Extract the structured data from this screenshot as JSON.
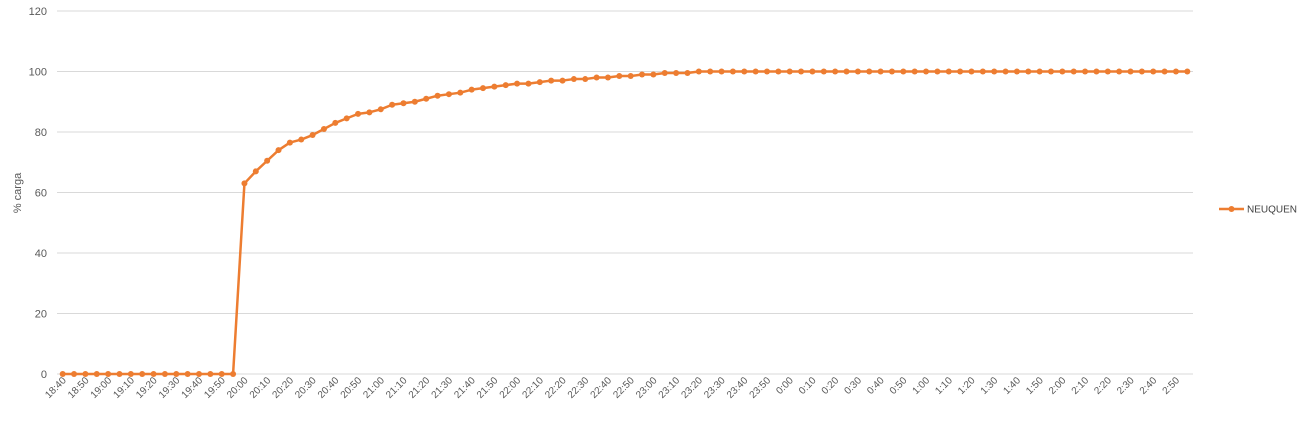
{
  "chart_data": {
    "type": "line",
    "title": "",
    "xlabel": "",
    "ylabel": "% carga",
    "ylim": [
      0,
      120
    ],
    "yticks": [
      0,
      20,
      40,
      60,
      80,
      100,
      120
    ],
    "grid": true,
    "legend_position": "right",
    "x": [
      "18:40",
      "18:45",
      "18:50",
      "18:55",
      "19:00",
      "19:05",
      "19:10",
      "19:15",
      "19:20",
      "19:25",
      "19:30",
      "19:35",
      "19:40",
      "19:45",
      "19:50",
      "19:55",
      "20:00",
      "20:05",
      "20:10",
      "20:15",
      "20:20",
      "20:25",
      "20:30",
      "20:35",
      "20:40",
      "20:45",
      "20:50",
      "20:55",
      "21:00",
      "21:05",
      "21:10",
      "21:15",
      "21:20",
      "21:25",
      "21:30",
      "21:35",
      "21:40",
      "21:45",
      "21:50",
      "21:55",
      "22:00",
      "22:05",
      "22:10",
      "22:15",
      "22:20",
      "22:25",
      "22:30",
      "22:35",
      "22:40",
      "22:45",
      "22:50",
      "22:55",
      "23:00",
      "23:05",
      "23:10",
      "23:15",
      "23:20",
      "23:25",
      "23:30",
      "23:35",
      "23:40",
      "23:45",
      "23:50",
      "23:55",
      "0:00",
      "0:05",
      "0:10",
      "0:15",
      "0:20",
      "0:25",
      "0:30",
      "0:35",
      "0:40",
      "0:45",
      "0:50",
      "0:55",
      "1:00",
      "1:05",
      "1:10",
      "1:15",
      "1:20",
      "1:25",
      "1:30",
      "1:35",
      "1:40",
      "1:45",
      "1:50",
      "1:55",
      "2:00",
      "2:05",
      "2:10",
      "2:15",
      "2:20",
      "2:25",
      "2:30",
      "2:35",
      "2:40",
      "2:45",
      "2:50",
      "2:55"
    ],
    "x_tick_labels": [
      "18:40",
      "18:50",
      "19:00",
      "19:10",
      "19:20",
      "19:30",
      "19:40",
      "19:50",
      "20:00",
      "20:10",
      "20:20",
      "20:30",
      "20:40",
      "20:50",
      "21:00",
      "21:10",
      "21:20",
      "21:30",
      "21:40",
      "21:50",
      "22:00",
      "22:10",
      "22:20",
      "22:30",
      "22:40",
      "22:50",
      "23:00",
      "23:10",
      "23:20",
      "23:30",
      "23:40",
      "23:50",
      "0:00",
      "0:10",
      "0:20",
      "0:30",
      "0:40",
      "0:50",
      "1:00",
      "1:10",
      "1:20",
      "1:30",
      "1:40",
      "1:50",
      "2:00",
      "2:10",
      "2:20",
      "2:30",
      "2:40",
      "2:50"
    ],
    "series": [
      {
        "name": "NEUQUEN",
        "color": "#ED7D31",
        "values": [
          0,
          0,
          0,
          0,
          0,
          0,
          0,
          0,
          0,
          0,
          0,
          0,
          0,
          0,
          0,
          0,
          63,
          67,
          70.5,
          74,
          76.5,
          77.5,
          79,
          81,
          83,
          84.5,
          86,
          86.5,
          87.5,
          89,
          89.5,
          90,
          91,
          92,
          92.5,
          93,
          94,
          94.5,
          95,
          95.5,
          96,
          96,
          96.5,
          97,
          97,
          97.5,
          97.5,
          98,
          98,
          98.5,
          98.5,
          99,
          99,
          99.5,
          99.5,
          99.5,
          100,
          100,
          100,
          100,
          100,
          100,
          100,
          100,
          100,
          100,
          100,
          100,
          100,
          100,
          100,
          100,
          100,
          100,
          100,
          100,
          100,
          100,
          100,
          100,
          100,
          100,
          100,
          100,
          100,
          100,
          100,
          100,
          100,
          100,
          100,
          100,
          100,
          100,
          100,
          100,
          100,
          100,
          100,
          100
        ]
      }
    ]
  }
}
